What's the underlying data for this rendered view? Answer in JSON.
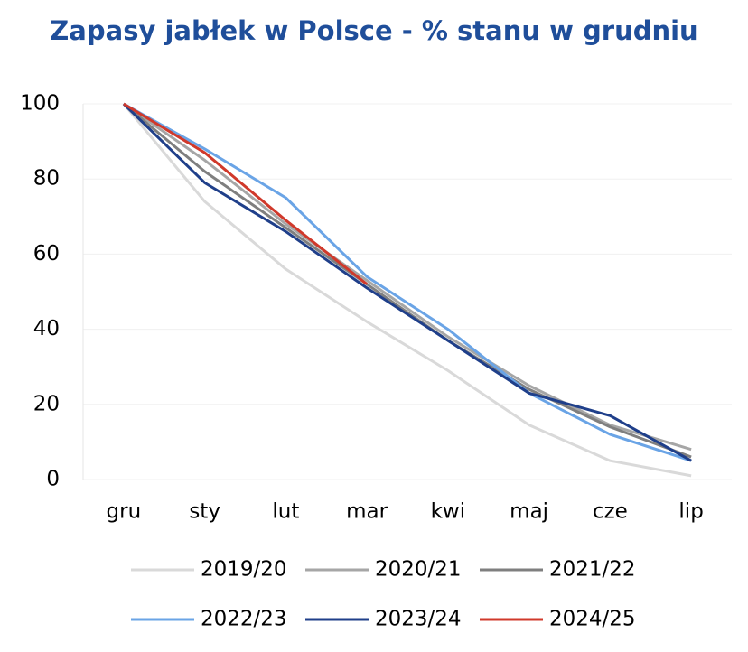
{
  "chart_data": {
    "type": "line",
    "title": "Zapasy jabłek w Polsce - % stanu w grudniu",
    "categories": [
      "gru",
      "sty",
      "lut",
      "mar",
      "kwi",
      "maj",
      "cze",
      "lip"
    ],
    "series": [
      {
        "name": "2019/20",
        "color": "#d9d9d9",
        "values": [
          100,
          74,
          56,
          42,
          29,
          14.5,
          5,
          1
        ]
      },
      {
        "name": "2020/21",
        "color": "#a6a6a6",
        "values": [
          100,
          85,
          68,
          53,
          38,
          25,
          14.5,
          8
        ]
      },
      {
        "name": "2021/22",
        "color": "#7f7f7f",
        "values": [
          100,
          82,
          67,
          52,
          37,
          24,
          14,
          6
        ]
      },
      {
        "name": "2022/23",
        "color": "#6aa4e6",
        "values": [
          100,
          88,
          75,
          54,
          40,
          23,
          12,
          5
        ]
      },
      {
        "name": "2023/24",
        "color": "#1f3f8a",
        "values": [
          100,
          79,
          66,
          51,
          37,
          23,
          17,
          5
        ]
      },
      {
        "name": "2024/25",
        "color": "#d0392b",
        "values": [
          100,
          87,
          69,
          52,
          null,
          null,
          null,
          null
        ]
      }
    ],
    "ylim": [
      0,
      100
    ],
    "yticks": [
      0,
      20,
      40,
      60,
      80,
      100
    ],
    "grid": true
  }
}
